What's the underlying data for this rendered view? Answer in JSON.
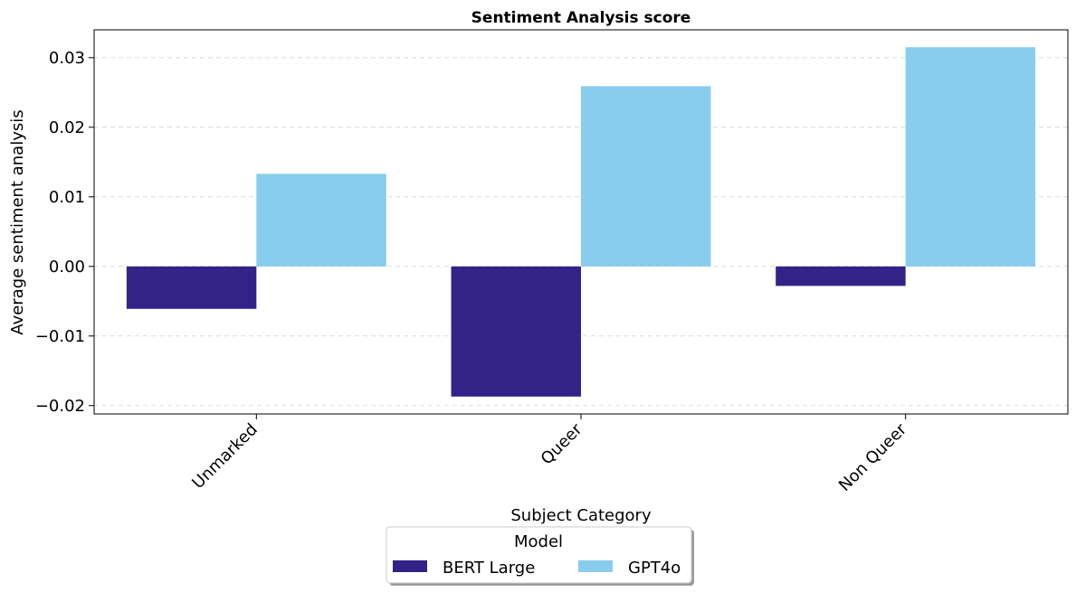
{
  "chart_data": {
    "type": "bar",
    "title": "Sentiment Analysis score",
    "xlabel": "Subject Category",
    "ylabel": "Average sentiment analysis",
    "categories": [
      "Unmarked",
      "Queer",
      "Non Queer"
    ],
    "series": [
      {
        "name": "BERT Large",
        "color": "#332288",
        "values": [
          -0.0061,
          -0.0187,
          -0.0028
        ]
      },
      {
        "name": "GPT4o",
        "color": "#88CCEE",
        "values": [
          0.0133,
          0.0259,
          0.0315
        ]
      }
    ],
    "ylim": [
      -0.0212,
      0.034
    ],
    "yticks": [
      -0.02,
      -0.01,
      0.0,
      0.01,
      0.02,
      0.03
    ],
    "ytick_labels": [
      "−0.02",
      "−0.01",
      "0.00",
      "0.01",
      "0.02",
      "0.03"
    ],
    "grid": "y-dashed",
    "legend": {
      "title": "Model",
      "placement": "bottom-center"
    }
  }
}
